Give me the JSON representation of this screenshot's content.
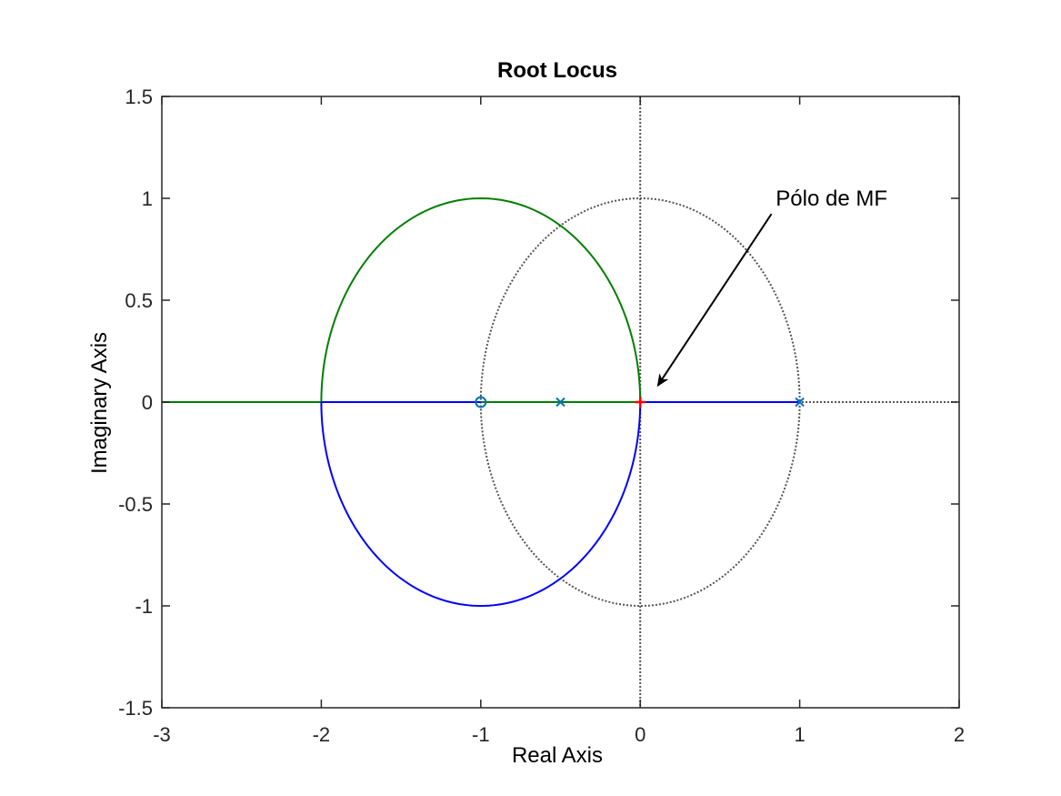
{
  "chart_data": {
    "type": "line",
    "title": "Root Locus",
    "xlabel": "Real Axis",
    "ylabel": "Imaginary Axis",
    "xlim": [
      -3,
      2
    ],
    "ylim": [
      -1.5,
      1.5
    ],
    "xticks": [
      -3,
      -2,
      -1,
      0,
      1,
      2
    ],
    "yticks": [
      -1.5,
      -1,
      -0.5,
      0,
      0.5,
      1,
      1.5
    ],
    "xtick_labels": [
      "-3",
      "-2",
      "-1",
      "0",
      "1",
      "2"
    ],
    "ytick_labels": [
      "-1.5",
      "-1",
      "-0.5",
      "0",
      "0.5",
      "1",
      "1.5"
    ],
    "grid": false,
    "series": [
      {
        "color": "#007f00",
        "style": "solid",
        "branches": [
          {
            "kind": "arc",
            "center": [
              -1,
              0
            ],
            "radius": 1,
            "from_deg": 0,
            "to_deg": 180
          },
          {
            "kind": "segment",
            "x": [
              -3,
              -2
            ],
            "y": [
              0,
              0
            ]
          },
          {
            "kind": "segment",
            "x": [
              -1,
              0
            ],
            "y": [
              0,
              0
            ]
          }
        ]
      },
      {
        "color": "#0000ff",
        "style": "solid",
        "branches": [
          {
            "kind": "arc",
            "center": [
              -1,
              0
            ],
            "radius": 1,
            "from_deg": 180,
            "to_deg": 360
          },
          {
            "kind": "segment",
            "x": [
              -2,
              -1
            ],
            "y": [
              0,
              0
            ]
          },
          {
            "kind": "segment",
            "x": [
              0,
              1
            ],
            "y": [
              0,
              0
            ]
          }
        ]
      }
    ],
    "reference_lines": [
      {
        "kind": "circle",
        "center": [
          0,
          0
        ],
        "radius": 1,
        "color": "#555555",
        "style": "dotted"
      },
      {
        "kind": "hline",
        "y": 0,
        "color": "#555555",
        "style": "dotted"
      },
      {
        "kind": "vline",
        "x": 0,
        "color": "#555555",
        "style": "dotted"
      }
    ],
    "poles": [
      {
        "x": -0.5,
        "y": 0,
        "color": "#0072bd"
      },
      {
        "x": 1,
        "y": 0,
        "color": "#0072bd"
      }
    ],
    "zeros": [
      {
        "x": -1,
        "y": 0,
        "color": "#0072bd"
      }
    ],
    "closed_loop_pole": {
      "x": 0,
      "y": 0,
      "color": "#ff0000"
    },
    "annotation": {
      "text": "Pólo de MF",
      "text_at": [
        0.85,
        1.0
      ],
      "arrow_from": [
        0.8,
        0.95
      ],
      "arrow_to": [
        0.1,
        0.1
      ]
    }
  }
}
